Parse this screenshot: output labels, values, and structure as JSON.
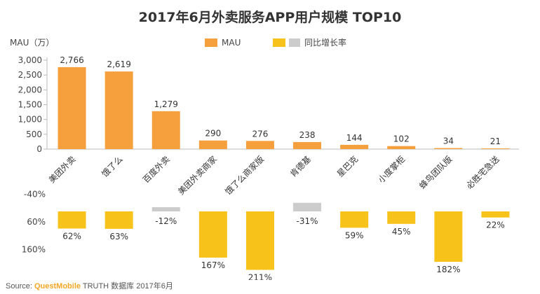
{
  "chart_data": {
    "type": "bar",
    "title": "2017年6月外卖服务APP用户规模 TOP10",
    "ylabel": "MAU（万）",
    "categories": [
      "美团外卖",
      "饿了么",
      "百度外卖",
      "美团外卖商家",
      "饿了么商家版",
      "肯德基",
      "星巴克",
      "小度掌柜",
      "蜂鸟团队版",
      "必胜宅急送"
    ],
    "legend": [
      "MAU",
      "同比增长率"
    ],
    "legend_position": "top",
    "series": [
      {
        "name": "MAU",
        "values": [
          2766,
          2619,
          1279,
          290,
          276,
          238,
          144,
          102,
          34,
          21
        ],
        "value_labels": [
          "2,766",
          "2,619",
          "1,279",
          "290",
          "276",
          "238",
          "144",
          "102",
          "34",
          "21"
        ],
        "color": "#f5a03c"
      },
      {
        "name": "同比增长率",
        "values": [
          62,
          63,
          -12,
          167,
          211,
          -31,
          59,
          45,
          182,
          22
        ],
        "value_labels": [
          "62%",
          "63%",
          "-12%",
          "167%",
          "211%",
          "-31%",
          "59%",
          "45%",
          "182%",
          "22%"
        ],
        "positive_color": "#f7c31b",
        "negative_color": "#cccccc"
      }
    ],
    "ylim": [
      0,
      3000
    ],
    "yticks": [
      0,
      500,
      1000,
      1500,
      2000,
      2500,
      3000
    ],
    "ytick_labels": [
      "0",
      "500",
      "1,000",
      "1,500",
      "2,000",
      "2,500",
      "3,000"
    ],
    "growth_ylim": [
      -40,
      220
    ],
    "growth_ticks": [
      -40,
      60,
      160
    ],
    "growth_tick_labels": [
      "-40%",
      "60%",
      "160%"
    ],
    "grid": false
  },
  "source": {
    "prefix": "Source:",
    "brand": "QuestMobile",
    "suffix": "TRUTH 数据库 2017年6月"
  }
}
